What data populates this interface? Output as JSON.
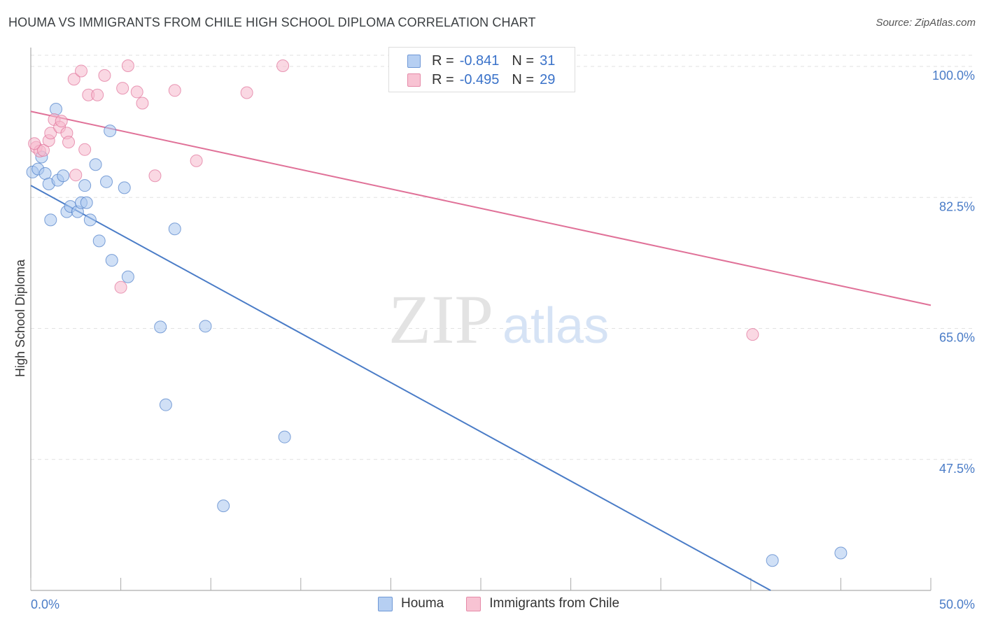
{
  "title": "HOUMA VS IMMIGRANTS FROM CHILE HIGH SCHOOL DIPLOMA CORRELATION CHART",
  "source": "Source: ZipAtlas.com",
  "watermark": {
    "zip": "ZIP",
    "atlas": "atlas"
  },
  "legend": {
    "houma": {
      "r_label": "R =",
      "r_value": "-0.841",
      "n_label": "N =",
      "n_value": "31"
    },
    "chile": {
      "r_label": "R =",
      "r_value": "-0.495",
      "n_label": "N =",
      "n_value": "29"
    }
  },
  "chart_data": {
    "type": "scatter",
    "title": "HOUMA VS IMMIGRANTS FROM CHILE HIGH SCHOOL DIPLOMA CORRELATION CHART",
    "xlabel": "",
    "ylabel": "High School Diploma",
    "xlim": [
      0,
      50
    ],
    "ylim": [
      30,
      101.5
    ],
    "x_tick_labels": [
      "0.0%",
      "50.0%"
    ],
    "y_ticks": [
      47.5,
      65.0,
      82.5,
      100.0
    ],
    "y_tick_labels": [
      "47.5%",
      "65.0%",
      "82.5%",
      "100.0%"
    ],
    "series": [
      {
        "name": "Houma",
        "color": "#4a7cc7",
        "fill": "#a9c6ee",
        "points": [
          [
            0.1,
            85.9
          ],
          [
            0.4,
            86.3
          ],
          [
            0.6,
            87.9
          ],
          [
            0.8,
            85.7
          ],
          [
            1.0,
            84.3
          ],
          [
            1.1,
            79.5
          ],
          [
            1.4,
            94.3
          ],
          [
            1.5,
            84.8
          ],
          [
            1.8,
            85.4
          ],
          [
            2.0,
            80.6
          ],
          [
            2.2,
            81.3
          ],
          [
            2.6,
            80.6
          ],
          [
            2.8,
            81.8
          ],
          [
            3.0,
            84.1
          ],
          [
            3.1,
            81.8
          ],
          [
            3.3,
            79.5
          ],
          [
            3.6,
            86.9
          ],
          [
            3.8,
            76.7
          ],
          [
            4.2,
            84.6
          ],
          [
            4.5,
            74.1
          ],
          [
            4.4,
            91.4
          ],
          [
            5.2,
            83.8
          ],
          [
            5.4,
            71.9
          ],
          [
            7.2,
            65.2
          ],
          [
            7.5,
            54.8
          ],
          [
            8.0,
            78.3
          ],
          [
            9.7,
            65.3
          ],
          [
            10.7,
            41.3
          ],
          [
            14.1,
            50.5
          ],
          [
            41.2,
            34.0
          ],
          [
            45.0,
            35.0
          ]
        ],
        "trend": [
          [
            0.0,
            84.1
          ],
          [
            41.1,
            30.0
          ]
        ]
      },
      {
        "name": "Immigrants from Chile",
        "color": "#e07198",
        "fill": "#f6b8cc",
        "points": [
          [
            0.3,
            89.2
          ],
          [
            0.5,
            88.7
          ],
          [
            0.7,
            88.8
          ],
          [
            1.0,
            90.1
          ],
          [
            1.1,
            91.1
          ],
          [
            1.3,
            92.9
          ],
          [
            1.6,
            91.9
          ],
          [
            1.7,
            92.7
          ],
          [
            2.0,
            91.1
          ],
          [
            2.1,
            89.9
          ],
          [
            2.4,
            98.3
          ],
          [
            2.5,
            85.5
          ],
          [
            2.8,
            99.4
          ],
          [
            3.0,
            88.9
          ],
          [
            3.2,
            96.2
          ],
          [
            3.7,
            96.2
          ],
          [
            4.1,
            98.8
          ],
          [
            5.0,
            70.5
          ],
          [
            5.1,
            97.1
          ],
          [
            5.4,
            100.1
          ],
          [
            5.9,
            96.6
          ],
          [
            6.2,
            95.1
          ],
          [
            6.9,
            85.4
          ],
          [
            8.0,
            96.8
          ],
          [
            9.2,
            87.4
          ],
          [
            12.0,
            96.5
          ],
          [
            14.0,
            100.1
          ],
          [
            40.1,
            64.2
          ],
          [
            0.2,
            89.7
          ]
        ],
        "trend": [
          [
            0.0,
            94.0
          ],
          [
            50.0,
            68.1
          ]
        ]
      }
    ]
  },
  "bottom_legend": {
    "houma": "Houma",
    "chile": "Immigrants from Chile"
  }
}
